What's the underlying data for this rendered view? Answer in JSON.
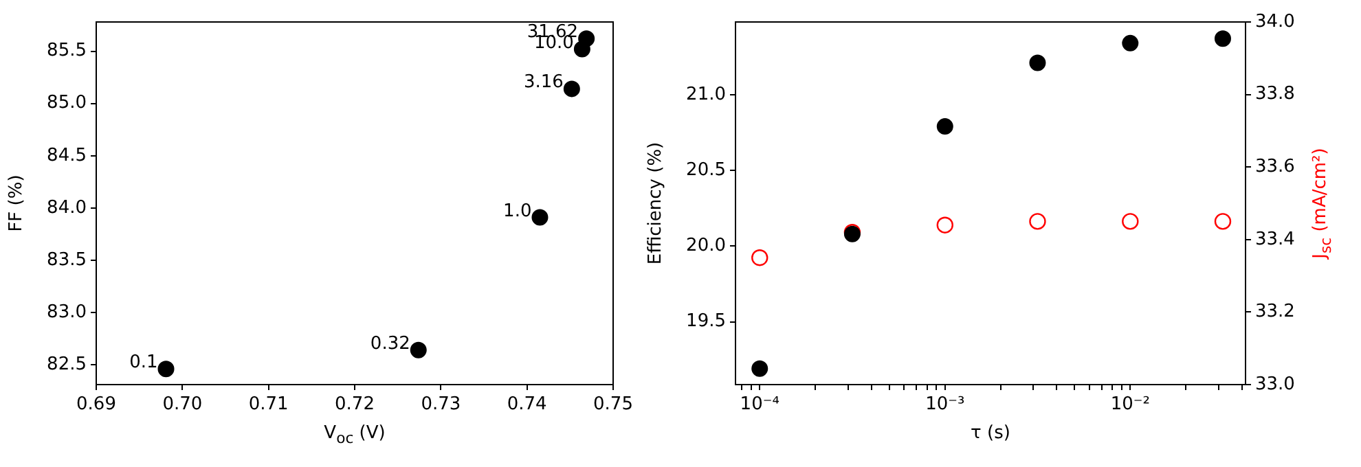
{
  "chart_data": [
    {
      "type": "scatter",
      "xlabel": "V$_{oc}$ (V)",
      "ylabel": "FF (%)",
      "marker": "circle",
      "grid": false,
      "x": [
        0.6981,
        0.7274,
        0.7415,
        0.7452,
        0.7464,
        0.7469
      ],
      "series": [
        {
          "color": "#000000",
          "values": [
            82.46,
            82.64,
            83.91,
            85.14,
            85.52,
            85.62
          ]
        }
      ],
      "xlim": [
        0.69,
        0.75
      ],
      "ylim": [
        82.31,
        85.78
      ],
      "xticks": [
        {
          "value": 0.69,
          "label": "0.69"
        },
        {
          "value": 0.7,
          "label": "0.70"
        },
        {
          "value": 0.71,
          "label": "0.71"
        },
        {
          "value": 0.72,
          "label": "0.72"
        },
        {
          "value": 0.73,
          "label": "0.73"
        },
        {
          "value": 0.74,
          "label": "0.74"
        },
        {
          "value": 0.75,
          "label": "0.75"
        }
      ],
      "yticks": [
        {
          "value": 82.5,
          "label": "82.5"
        },
        {
          "value": 83,
          "label": "83.0"
        },
        {
          "value": 83.5,
          "label": "83.5"
        },
        {
          "value": 84,
          "label": "84.0"
        },
        {
          "value": 84.5,
          "label": "84.5"
        },
        {
          "value": 85,
          "label": "85.0"
        },
        {
          "value": 85.5,
          "label": "85.5"
        }
      ],
      "annotations": [
        {
          "text": "0.1",
          "x": 0.6981,
          "y": 82.46
        },
        {
          "text": "0.32",
          "x": 0.7274,
          "y": 82.64
        },
        {
          "text": "1.0",
          "x": 0.7415,
          "y": 83.91
        },
        {
          "text": "3.16",
          "x": 0.7452,
          "y": 85.14
        },
        {
          "text": "10.0",
          "x": 0.7464,
          "y": 85.52
        },
        {
          "text": "31.62",
          "x": 0.7469,
          "y": 85.62
        }
      ]
    },
    {
      "type": "scatter",
      "xlabel": "τ (s)",
      "ylabel": "Efficiency (%)",
      "y2label": "J$_{sc}$ (mA/cm²)",
      "marker": "circle",
      "grid": false,
      "log": "x",
      "x": [
        0.0001,
        0.000316,
        0.001,
        0.00316,
        0.01,
        0.0316
      ],
      "series": [
        {
          "color": "#000000",
          "values": [
            19.19,
            20.08,
            20.79,
            21.21,
            21.34,
            21.37
          ]
        },
        {
          "color": "#ff0000",
          "axis": "y2",
          "values": [
            33.35,
            33.42,
            33.44,
            33.45,
            33.45,
            33.45
          ]
        }
      ],
      "xlim": [
        7.4e-05,
        0.0419
      ],
      "ylim": [
        19.085,
        21.48
      ],
      "y2lim": [
        33.0,
        34.0
      ],
      "xticks": [
        {
          "value": 8e-05,
          "label": null
        },
        {
          "value": 9e-05,
          "label": null
        },
        {
          "value": 0.0001,
          "label": "10⁻⁴"
        },
        {
          "value": 0.0002,
          "label": null
        },
        {
          "value": 0.0003,
          "label": null
        },
        {
          "value": 0.0004,
          "label": null
        },
        {
          "value": 0.0005,
          "label": null
        },
        {
          "value": 0.0006,
          "label": null
        },
        {
          "value": 0.0007,
          "label": null
        },
        {
          "value": 0.0008,
          "label": null
        },
        {
          "value": 0.0009,
          "label": null
        },
        {
          "value": 0.001,
          "label": "10⁻³"
        },
        {
          "value": 0.002,
          "label": null
        },
        {
          "value": 0.003,
          "label": null
        },
        {
          "value": 0.004,
          "label": null
        },
        {
          "value": 0.005,
          "label": null
        },
        {
          "value": 0.006,
          "label": null
        },
        {
          "value": 0.007,
          "label": null
        },
        {
          "value": 0.008,
          "label": null
        },
        {
          "value": 0.009,
          "label": null
        },
        {
          "value": 0.01,
          "label": "10⁻²"
        },
        {
          "value": 0.02,
          "label": null
        },
        {
          "value": 0.03,
          "label": null
        },
        {
          "value": 0.04,
          "label": null
        }
      ],
      "yticks": [
        {
          "value": 19.5,
          "label": "19.5"
        },
        {
          "value": 20,
          "label": "20.0"
        },
        {
          "value": 20.5,
          "label": "20.5"
        },
        {
          "value": 21,
          "label": "21.0"
        }
      ],
      "y2ticks": [
        {
          "value": 33,
          "label": "33.0"
        },
        {
          "value": 33.2,
          "label": "33.2"
        },
        {
          "value": 33.4,
          "label": "33.4"
        },
        {
          "value": 33.6,
          "label": "33.6"
        },
        {
          "value": 33.8,
          "label": "33.8"
        },
        {
          "value": 34,
          "label": "34.0"
        }
      ]
    }
  ]
}
